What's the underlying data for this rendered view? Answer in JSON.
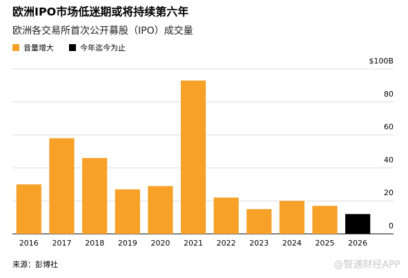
{
  "chart_data": {
    "type": "bar",
    "title": "欧洲IPO市场低迷期或将持续第六年",
    "subtitle": "欧洲各交易所首次公开募股（IPO）成交量",
    "categories": [
      "2016",
      "2017",
      "2018",
      "2019",
      "2020",
      "2021",
      "2022",
      "2023",
      "2024",
      "2025",
      "2026"
    ],
    "series": [
      {
        "name": "音量增大",
        "color": "#f7a128",
        "values": [
          30,
          58,
          46,
          27,
          29,
          93,
          22,
          15,
          20,
          17,
          null
        ]
      },
      {
        "name": "今年迄今为止",
        "color": "#000000",
        "values": [
          null,
          null,
          null,
          null,
          null,
          null,
          null,
          null,
          null,
          null,
          12
        ]
      }
    ],
    "ylim": [
      0,
      100
    ],
    "yticks": [
      0,
      20,
      40,
      60,
      80,
      {
        "value": 100,
        "label": "$100B"
      }
    ],
    "grid": true,
    "source": "来源：彭博社",
    "watermark": "@智通财经APP"
  }
}
